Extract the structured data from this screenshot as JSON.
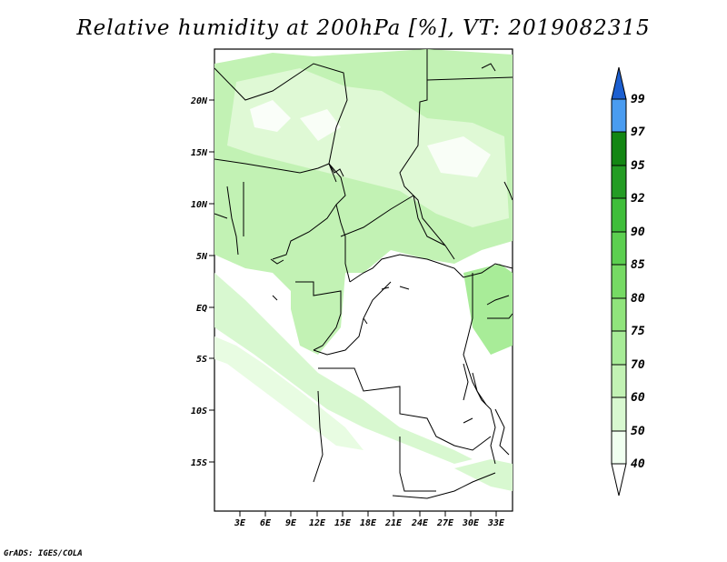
{
  "title": "Relative humidity at 200hPa [%], VT: 2019082315",
  "credit": "GrADS: IGES/COLA",
  "map": {
    "lat_labels": [
      "20N",
      "15N",
      "10N",
      "5N",
      "EQ",
      "5S",
      "10S",
      "15S"
    ],
    "lon_labels": [
      "3E",
      "6E",
      "9E",
      "12E",
      "15E",
      "18E",
      "21E",
      "24E",
      "27E",
      "30E",
      "33E"
    ]
  },
  "colorbar": {
    "levels": [
      "40",
      "50",
      "60",
      "70",
      "75",
      "80",
      "85",
      "90",
      "92",
      "95",
      "97",
      "99"
    ],
    "colors": [
      "#f0fff0",
      "#d8f8d0",
      "#c2f2b4",
      "#a8ec98",
      "#90e47c",
      "#76da64",
      "#5ccf50",
      "#3fbe3a",
      "#249c24",
      "#138613",
      "#4a9cf0",
      "#2a76e0",
      "#1c5fd0"
    ]
  }
}
